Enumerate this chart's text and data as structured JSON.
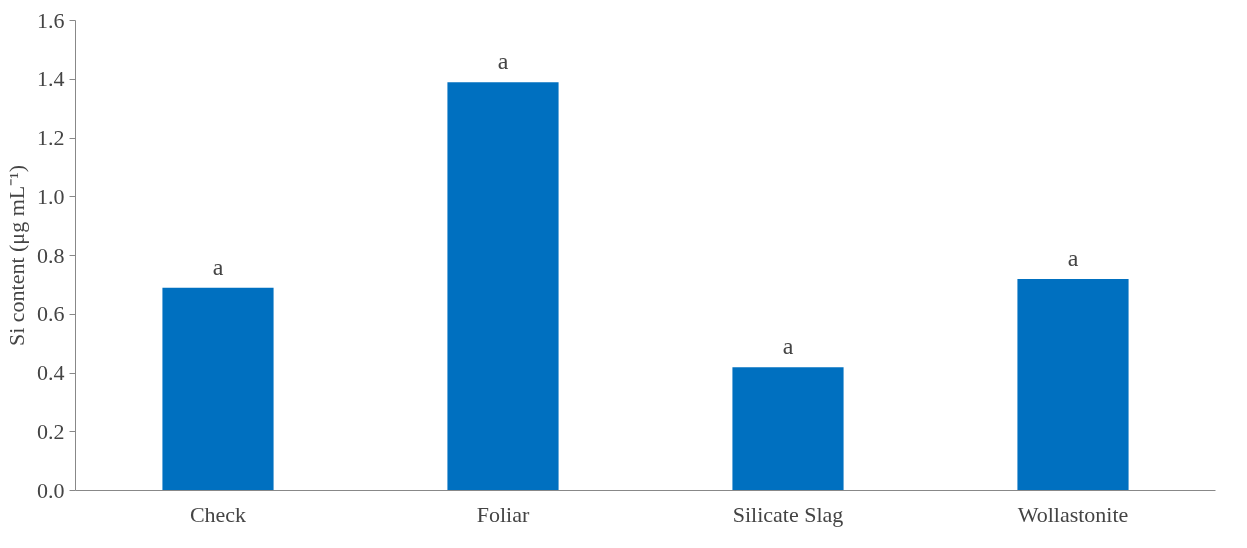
{
  "chart_data": {
    "type": "bar",
    "ylabel": "Si content (μg mL⁻¹)",
    "categories": [
      "Check",
      "Foliar",
      "Silicate Slag",
      "Wollastonite"
    ],
    "values": [
      0.69,
      1.39,
      0.42,
      0.72
    ],
    "color": "#0070c0",
    "ylim": [
      0,
      1.6
    ],
    "yticks": [
      {
        "value": 0,
        "label": "0.0"
      },
      {
        "value": 0.2,
        "label": "0.2"
      },
      {
        "value": 0.4,
        "label": "0.4"
      },
      {
        "value": 0.6,
        "label": "0.6"
      },
      {
        "value": 0.8,
        "label": "0.8"
      },
      {
        "value": 1.0,
        "label": "1.0"
      },
      {
        "value": 1.2,
        "label": "1.2"
      },
      {
        "value": 1.4,
        "label": "1.4"
      },
      {
        "value": 1.6,
        "label": "1.6"
      }
    ],
    "annotations": [
      {
        "text": "a",
        "x": "Check",
        "y": 0.69
      },
      {
        "text": "a",
        "x": "Foliar",
        "y": 1.39
      },
      {
        "text": "a",
        "x": "Silicate Slag",
        "y": 0.42
      },
      {
        "text": "a",
        "x": "Wollastonite",
        "y": 0.72
      }
    ],
    "grid": false
  }
}
